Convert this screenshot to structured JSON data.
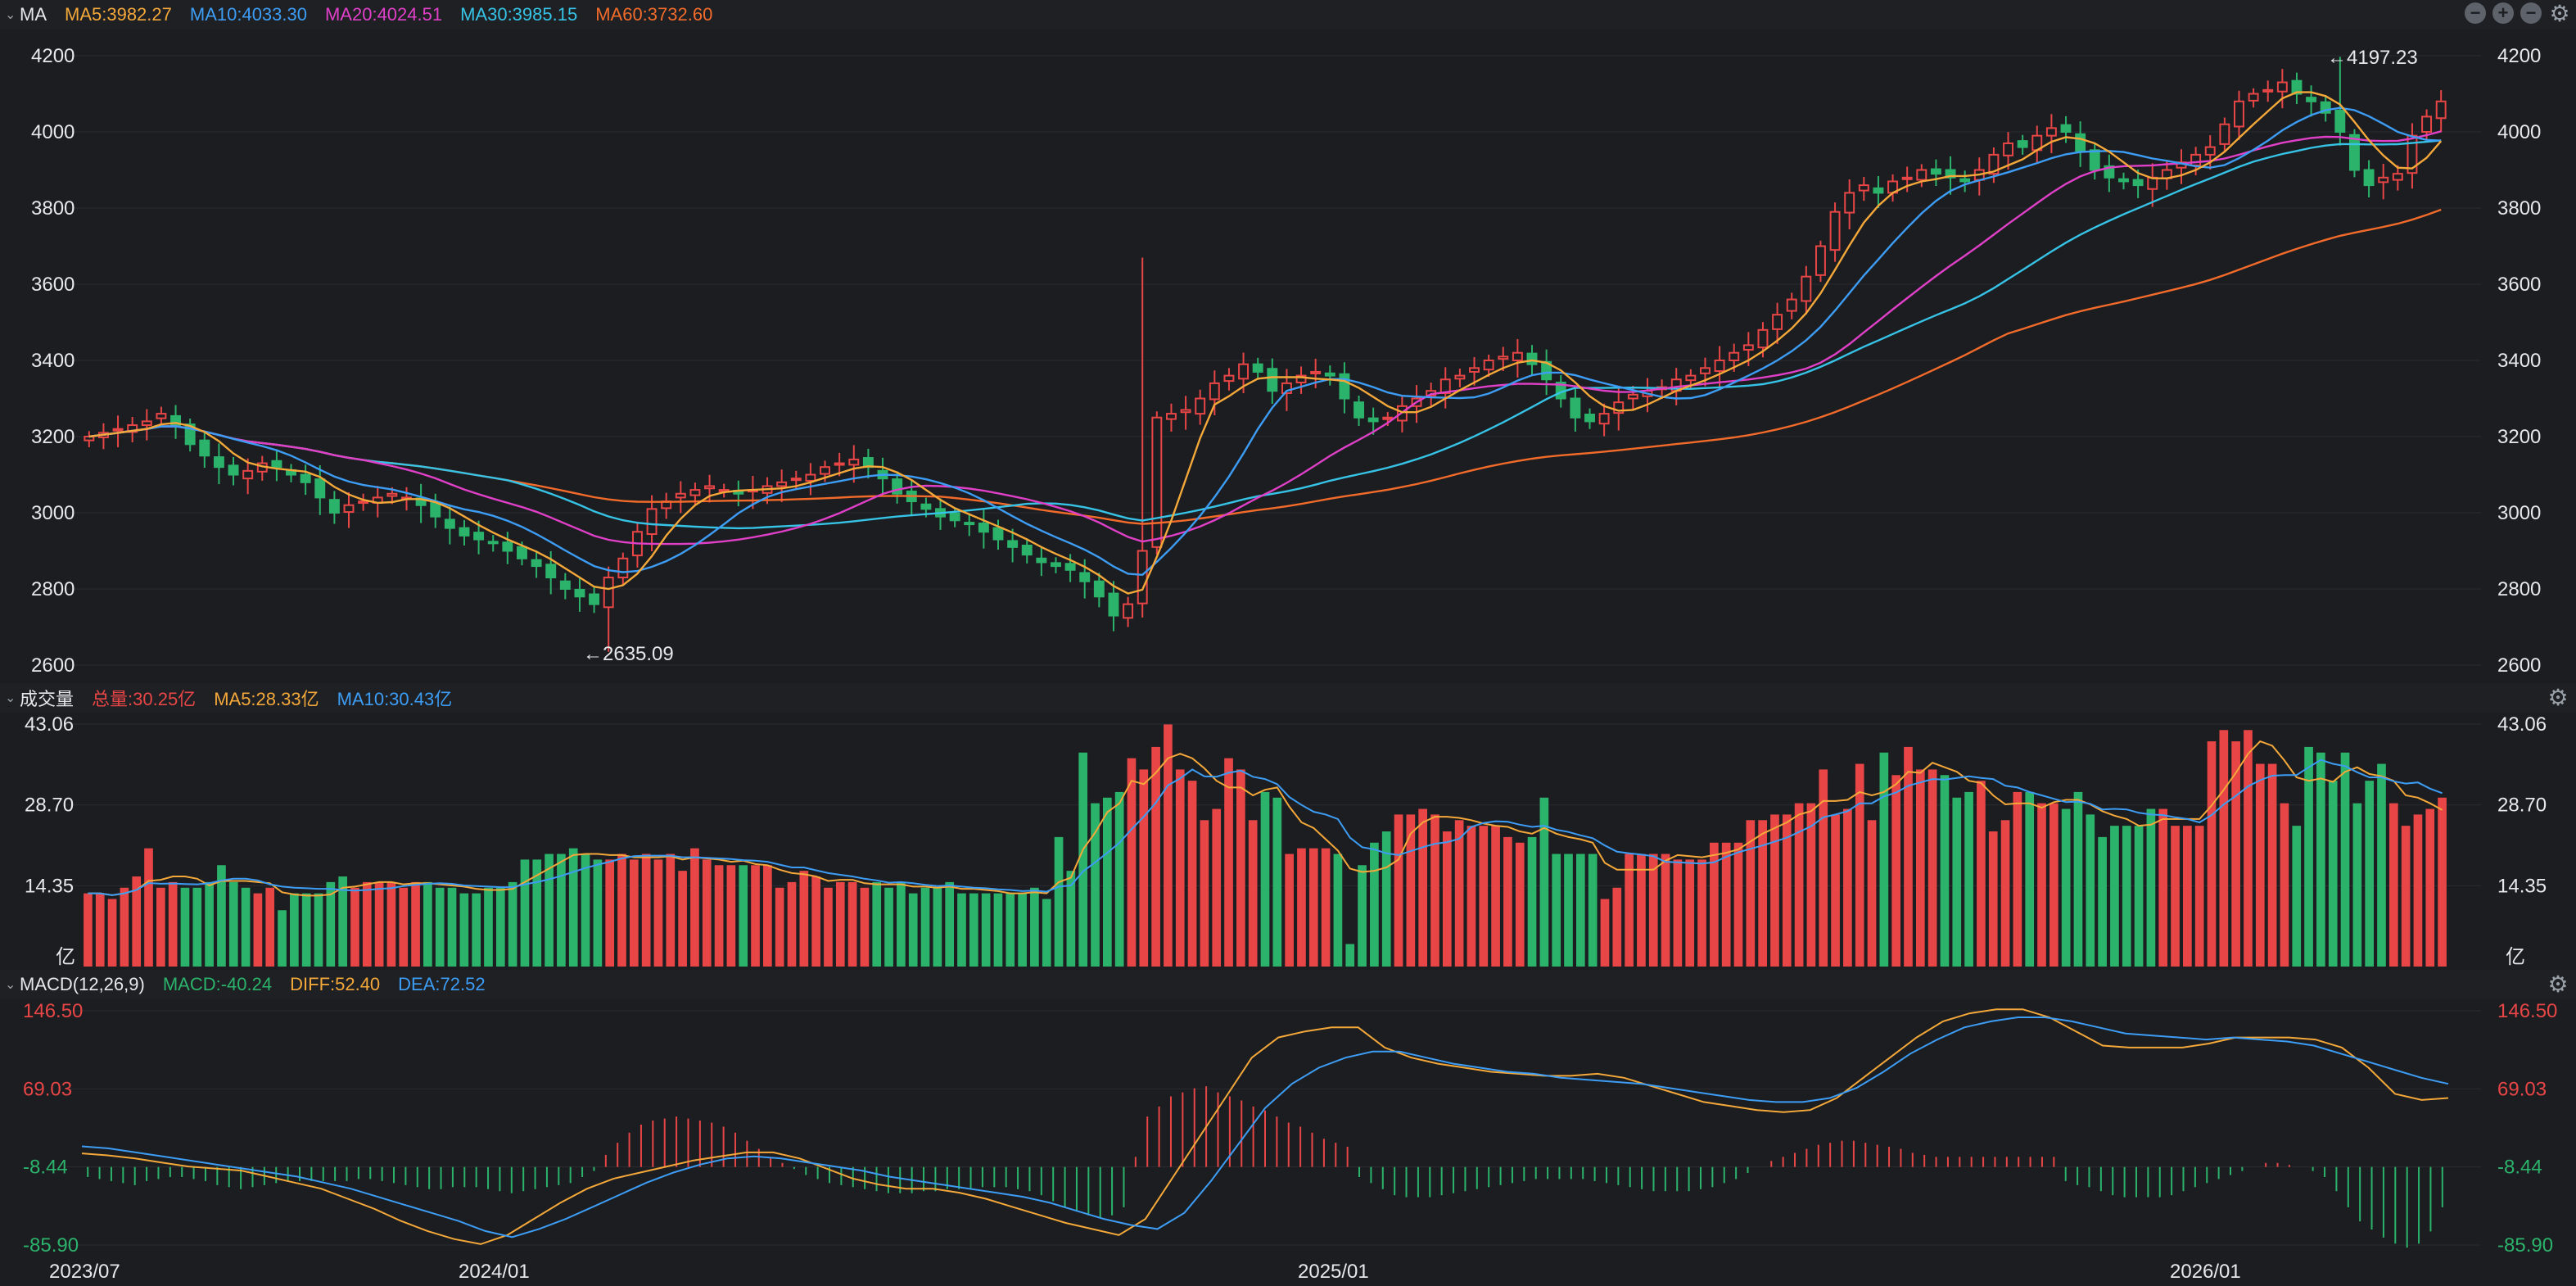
{
  "main_header": {
    "name": "MA",
    "indicators": [
      {
        "label": "MA5:3982.27",
        "color": "#f4a83a"
      },
      {
        "label": "MA10:4033.30",
        "color": "#3d9df5"
      },
      {
        "label": "MA20:4024.51",
        "color": "#e040c8"
      },
      {
        "label": "MA30:3985.15",
        "color": "#36c3e6"
      },
      {
        "label": "MA60:3732.60",
        "color": "#f26b2a"
      }
    ],
    "controls": [
      "minus-icon",
      "plus-icon",
      "minus-icon",
      "gear-icon"
    ]
  },
  "volume_header": {
    "name": "成交量",
    "indicators": [
      {
        "label": "总量:30.25亿",
        "color": "#e84646"
      },
      {
        "label": "MA5:28.33亿",
        "color": "#f4a83a"
      },
      {
        "label": "MA10:30.43亿",
        "color": "#3d9df5"
      }
    ]
  },
  "macd_header": {
    "name": "MACD(12,26,9)",
    "indicators": [
      {
        "label": "MACD:-40.24",
        "color": "#2cb36b"
      },
      {
        "label": "DIFF:52.40",
        "color": "#f4a83a"
      },
      {
        "label": "DEA:72.52",
        "color": "#3d9df5"
      }
    ]
  },
  "colors": {
    "up": "#e84646",
    "down": "#2cb36b",
    "ma5": "#f4a83a",
    "ma10": "#3d9df5",
    "ma20": "#e040c8",
    "ma30": "#36c3e6",
    "ma60": "#f26b2a"
  },
  "chart_data": [
    {
      "type": "candlestick",
      "title": "",
      "ylim": [
        2600,
        4260
      ],
      "y_ticks": [
        "4200",
        "4000",
        "3800",
        "3600",
        "3400",
        "3200",
        "3000",
        "2800",
        "2600"
      ],
      "annotations": [
        "←4197.23",
        "←2635.09"
      ],
      "approx_close": [
        3200,
        3210,
        3220,
        3230,
        3240,
        3260,
        3230,
        3180,
        3150,
        3120,
        3100,
        3110,
        3130,
        3120,
        3100,
        3080,
        3040,
        3000,
        3020,
        3030,
        3040,
        3050,
        3040,
        3020,
        2990,
        2960,
        2940,
        2930,
        2920,
        2900,
        2880,
        2860,
        2830,
        2800,
        2780,
        2760,
        2830,
        2880,
        2950,
        3010,
        3030,
        3050,
        3060,
        3070,
        3060,
        3050,
        3060,
        3070,
        3080,
        3090,
        3100,
        3120,
        3130,
        3140,
        3120,
        3090,
        3050,
        3030,
        3010,
        2990,
        2980,
        2970,
        2950,
        2930,
        2910,
        2890,
        2870,
        2860,
        2850,
        2820,
        2780,
        2730,
        2760,
        2900,
        3250,
        3260,
        3270,
        3300,
        3340,
        3360,
        3390,
        3370,
        3320,
        3340,
        3360,
        3370,
        3360,
        3300,
        3250,
        3240,
        3250,
        3280,
        3300,
        3320,
        3350,
        3360,
        3380,
        3400,
        3410,
        3420,
        3390,
        3350,
        3300,
        3250,
        3240,
        3260,
        3290,
        3310,
        3320,
        3330,
        3350,
        3360,
        3380,
        3400,
        3420,
        3440,
        3480,
        3520,
        3560,
        3620,
        3700,
        3790,
        3840,
        3860,
        3840,
        3870,
        3880,
        3900,
        3890,
        3880,
        3870,
        3900,
        3940,
        3970,
        3960,
        3990,
        4010,
        4000,
        3950,
        3900,
        3880,
        3870,
        3860,
        3880,
        3900,
        3920,
        3940,
        3960,
        4020,
        4080,
        4100,
        4110,
        4130,
        4100,
        4080,
        4050,
        4000,
        3900,
        3860,
        3880,
        3890,
        3990,
        4040,
        4080
      ]
    },
    {
      "type": "bar",
      "title": "",
      "ylabel": "亿",
      "ylim": [
        0,
        43.06
      ],
      "y_ticks": [
        "43.06",
        "28.70",
        "14.35"
      ],
      "unit": "亿",
      "values": [
        13,
        13,
        12,
        14,
        16,
        21,
        14,
        15,
        14,
        14,
        15,
        18,
        15,
        14,
        13,
        14,
        10,
        13,
        13,
        13,
        15,
        16,
        14,
        15,
        15,
        15,
        14,
        15,
        15,
        14,
        14,
        13,
        13,
        14,
        14,
        15,
        19,
        19,
        20,
        20,
        21,
        20,
        19,
        19,
        20,
        19,
        20,
        19,
        20,
        17,
        21,
        19,
        18,
        18,
        18,
        18,
        18,
        14,
        15,
        17,
        16,
        14,
        15,
        15,
        14,
        15,
        14,
        15,
        13,
        14,
        14,
        15,
        13,
        13,
        13,
        13,
        13,
        13,
        14,
        12,
        23,
        17,
        38,
        29,
        30,
        31,
        37,
        35,
        39,
        43,
        35,
        33,
        26,
        28,
        37,
        35,
        26,
        31,
        30,
        20,
        21,
        21,
        21,
        20,
        4,
        18,
        22,
        24,
        27,
        27,
        28,
        27,
        24,
        26,
        25,
        25,
        25,
        23,
        22,
        23,
        30,
        20,
        20,
        20,
        20,
        12,
        14,
        20,
        20,
        20,
        20,
        19,
        19,
        19,
        22,
        22,
        22,
        26,
        26,
        27,
        27,
        29,
        29,
        35,
        27,
        28,
        36,
        26,
        38,
        34,
        39,
        35,
        35,
        34,
        30,
        31,
        33,
        24,
        26,
        31,
        31,
        29,
        29,
        28,
        31,
        27,
        23,
        25,
        25,
        25,
        28,
        28,
        25,
        25,
        25,
        40,
        42,
        40,
        42,
        36,
        36,
        29,
        25,
        39,
        38,
        33,
        38,
        29,
        33,
        36,
        29,
        25,
        27,
        28,
        30
      ]
    },
    {
      "type": "bar",
      "title": "",
      "ylim": [
        -85.9,
        146.5
      ],
      "y_ticks": [
        "146.50",
        "69.03",
        "-8.44",
        "-85.90"
      ],
      "x_ticks": [
        "2023/07",
        "2024/01",
        "2025/01",
        "2026/01"
      ],
      "series": [
        {
          "name": "MACD",
          "values": [
            -10,
            -12,
            -14,
            -16,
            -18,
            -14,
            -12,
            -10,
            -10,
            -12,
            -14,
            -18,
            -20,
            -22,
            -20,
            -18,
            -16,
            -14,
            -14,
            -14,
            -14,
            -14,
            -14,
            -12,
            -12,
            -14,
            -16,
            -18,
            -20,
            -22,
            -22,
            -20,
            -20,
            -20,
            -22,
            -24,
            -26,
            -24,
            -22,
            -20,
            -18,
            -16,
            -10,
            -4,
            12,
            24,
            34,
            42,
            46,
            48,
            50,
            48,
            46,
            44,
            40,
            34,
            26,
            18,
            10,
            4,
            -2,
            -8,
            -12,
            -16,
            -18,
            -20,
            -22,
            -24,
            -26,
            -26,
            -26,
            -24,
            -24,
            -22,
            -22,
            -22,
            -20,
            -20,
            -20,
            -22,
            -24,
            -28,
            -34,
            -40,
            -44,
            -48,
            -50,
            -48,
            -40,
            10,
            50,
            60,
            70,
            74,
            78,
            80,
            74,
            70,
            66,
            60,
            56,
            50,
            44,
            40,
            34,
            28,
            24,
            20,
            -10,
            -16,
            -22,
            -28,
            -30,
            -30,
            -30,
            -28,
            -26,
            -24,
            -22,
            -20,
            -18,
            -16,
            -14,
            -12,
            -12,
            -12,
            -12,
            -12,
            -14,
            -16,
            -18,
            -20,
            -22,
            -24,
            -24,
            -24,
            -24,
            -22,
            -20,
            -16,
            -12,
            -6,
            0,
            6,
            10,
            14,
            18,
            22,
            24,
            26,
            26,
            24,
            22,
            20,
            18,
            14,
            12,
            10,
            10,
            10,
            10,
            10,
            10,
            10,
            10,
            10,
            10,
            10,
            -14,
            -18,
            -20,
            -24,
            -28,
            -30,
            -30,
            -30,
            -30,
            -28,
            -24,
            -20,
            -16,
            -12,
            -8,
            -4,
            0,
            4,
            4,
            2,
            0,
            -4,
            -10,
            -24,
            -40,
            -54,
            -62,
            -70,
            -76,
            -80,
            -76,
            -64,
            -40
          ]
        },
        {
          "name": "DIFF",
          "approx_values": [
            5,
            3,
            0,
            -4,
            -8,
            -10,
            -12,
            -18,
            -24,
            -30,
            -40,
            -50,
            -62,
            -72,
            -80,
            -85,
            -76,
            -60,
            -44,
            -30,
            -20,
            -14,
            -8,
            -2,
            2,
            6,
            6,
            0,
            -10,
            -20,
            -26,
            -30,
            -30,
            -34,
            -40,
            -48,
            -56,
            -64,
            -70,
            -76,
            -60,
            -20,
            20,
            60,
            100,
            120,
            126,
            130,
            130,
            110,
            100,
            94,
            90,
            86,
            84,
            82,
            82,
            84,
            80,
            72,
            64,
            56,
            52,
            48,
            46,
            48,
            60,
            80,
            100,
            120,
            136,
            144,
            148,
            148,
            140,
            126,
            112,
            110,
            110,
            110,
            114,
            120,
            120,
            120,
            118,
            110,
            90,
            64,
            58,
            60
          ]
        },
        {
          "name": "DEA",
          "approx_values": [
            12,
            10,
            6,
            2,
            -2,
            -6,
            -10,
            -14,
            -18,
            -24,
            -30,
            -38,
            -46,
            -54,
            -62,
            -72,
            -78,
            -70,
            -60,
            -48,
            -36,
            -24,
            -14,
            -6,
            0,
            2,
            0,
            -4,
            -8,
            -12,
            -18,
            -22,
            -26,
            -30,
            -34,
            -38,
            -44,
            -52,
            -60,
            -66,
            -70,
            -54,
            -22,
            14,
            50,
            74,
            90,
            100,
            106,
            106,
            100,
            94,
            90,
            86,
            84,
            80,
            78,
            76,
            74,
            70,
            66,
            62,
            58,
            56,
            56,
            60,
            70,
            86,
            104,
            118,
            130,
            136,
            140,
            140,
            136,
            130,
            124,
            122,
            120,
            118,
            120,
            118,
            116,
            112,
            104,
            96,
            88,
            80,
            74
          ]
        }
      ]
    }
  ]
}
